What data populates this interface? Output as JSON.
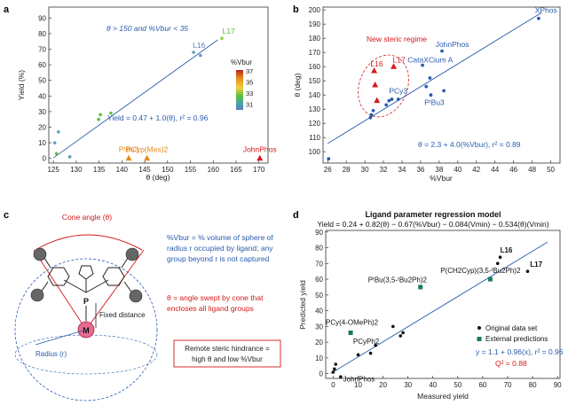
{
  "panels": {
    "a": {
      "label": "a",
      "chart_data": {
        "type": "scatter",
        "xlabel": "θ (deg)",
        "ylabel": "Yield (%)",
        "xlim": [
          124,
          172
        ],
        "ylim": [
          -3,
          97
        ],
        "xticks": [
          "125",
          "130",
          "135",
          "140",
          "145",
          "150",
          "155",
          "160",
          "165",
          "170"
        ],
        "yticks": [
          "0",
          "10",
          "20",
          "30",
          "40",
          "50",
          "60",
          "70",
          "80",
          "90"
        ],
        "points": [
          {
            "x": 125.3,
            "y": 10,
            "vbur": 31
          },
          {
            "x": 125.7,
            "y": 3,
            "vbur": 33
          },
          {
            "x": 126.1,
            "y": 17,
            "vbur": 31
          },
          {
            "x": 128.6,
            "y": 1,
            "vbur": 31
          },
          {
            "x": 134.9,
            "y": 25,
            "vbur": 33
          },
          {
            "x": 135.3,
            "y": 28,
            "vbur": 33
          },
          {
            "x": 137.6,
            "y": 29,
            "vbur": 33
          },
          {
            "x": 155.7,
            "y": 68,
            "vbur": 31
          },
          {
            "x": 157.2,
            "y": 66,
            "vbur": 31
          },
          {
            "x": 161.9,
            "y": 77,
            "vbur": 35
          }
        ],
        "triangles": [
          {
            "x": 141.5,
            "y": 0,
            "label": "PᵗBu3",
            "color": "#e8891a"
          },
          {
            "x": 145.5,
            "y": 0,
            "label": "PCyp(Mes)2",
            "color": "#e8891a"
          },
          {
            "x": 170.2,
            "y": 0,
            "label": "JohnPhos",
            "color": "#d7191c"
          }
        ],
        "point_labels": [
          {
            "text": "L16",
            "x": 155.5,
            "y": 71,
            "color": "#5a7ec0"
          },
          {
            "text": "L17",
            "x": 162,
            "y": 80,
            "color": "#5cbf3a"
          }
        ],
        "fit_line": {
          "x": [
            125,
            161
          ],
          "y": [
            0.3,
            76
          ]
        },
        "annot1": "θ > 150 and %Vbur < 35",
        "annot2": "Yield = 0.47 + 1.0(θ), r² = 0.96",
        "colorbar": {
          "title": "%Vbur",
          "ticks": [
            "37",
            "35",
            "33",
            "31"
          ],
          "colors": [
            "#b3261e",
            "#e8891a",
            "#f4d03f",
            "#5cbf3a",
            "#4aa6a0",
            "#5a7ec0"
          ]
        }
      }
    },
    "b": {
      "label": "b",
      "chart_data": {
        "type": "scatter",
        "xlabel": "%Vbur",
        "ylabel": "θ (deg)",
        "xlim": [
          25.5,
          51
        ],
        "ylim": [
          92,
          202
        ],
        "xticks": [
          "26",
          "28",
          "30",
          "32",
          "34",
          "36",
          "38",
          "40",
          "42",
          "44",
          "46",
          "48",
          "50"
        ],
        "yticks": [
          "100",
          "110",
          "120",
          "130",
          "140",
          "150",
          "160",
          "170",
          "180",
          "190",
          "200"
        ],
        "points": [
          {
            "x": 26.1,
            "y": 95
          },
          {
            "x": 30.6,
            "y": 124
          },
          {
            "x": 30.7,
            "y": 126
          },
          {
            "x": 30.9,
            "y": 129
          },
          {
            "x": 32.3,
            "y": 133
          },
          {
            "x": 32.6,
            "y": 136
          },
          {
            "x": 32.9,
            "y": 137
          },
          {
            "x": 33.6,
            "y": 137
          },
          {
            "x": 36.2,
            "y": 161
          },
          {
            "x": 36.6,
            "y": 146
          },
          {
            "x": 37.0,
            "y": 152
          },
          {
            "x": 37.1,
            "y": 140
          },
          {
            "x": 38.3,
            "y": 171
          },
          {
            "x": 38.5,
            "y": 143
          },
          {
            "x": 48.7,
            "y": 194
          }
        ],
        "triangles": [
          {
            "x": 31.0,
            "y": 157,
            "color": "#d7191c"
          },
          {
            "x": 31.1,
            "y": 147,
            "color": "#d7191c"
          },
          {
            "x": 31.3,
            "y": 136,
            "color": "#d7191c"
          },
          {
            "x": 33.1,
            "y": 160,
            "color": "#d7191c"
          }
        ],
        "point_labels": [
          {
            "text": "XPhos",
            "x": 48.3,
            "y": 198,
            "color": "#2a5cae"
          },
          {
            "text": "JohnPhos",
            "x": 37.6,
            "y": 174,
            "color": "#2a5cae"
          },
          {
            "text": "CataXCium A",
            "x": 34.6,
            "y": 163,
            "color": "#2a5cae"
          },
          {
            "text": "L17",
            "x": 33.0,
            "y": 163,
            "color": "#d7191c"
          },
          {
            "text": "L16",
            "x": 30.6,
            "y": 160,
            "color": "#d7191c"
          },
          {
            "text": "PCy3",
            "x": 32.6,
            "y": 141,
            "color": "#2a5cae"
          },
          {
            "text": "PᵗBu3",
            "x": 36.4,
            "y": 133,
            "color": "#2a5cae"
          }
        ],
        "fit_line": {
          "x": [
            26,
            49
          ],
          "y": [
            105.8,
            198
          ]
        },
        "regime_label": "New steric regime",
        "annot": "θ = 2.3 + 4.0(%Vbur), r² = 0.89"
      }
    },
    "c": {
      "label": "c",
      "cone_label": "Cone angle (θ)",
      "fixed_distance": "Fixed distance",
      "radius": "Radius (r)",
      "atom_p": "P",
      "atom_m": "M",
      "def1": [
        "%Vbur = % volume of sphere of",
        "radius r occupied by ligand; any",
        "group beyond r is not captured"
      ],
      "def2": [
        "θ = angle swept by cone that",
        "encloses all ligand groups"
      ],
      "box": [
        "Remote steric hindrance =",
        "high θ and low %Vbur"
      ]
    },
    "d": {
      "label": "d",
      "chart_data": {
        "type": "scatter",
        "title": "Ligand parameter regression model",
        "equation": "Yield = 0.24 + 0.82(θ) − 0.67(%Vbur) − 0.084(Vmin) − 0.534(θ)(Vmin)",
        "xlabel": "Measured yield",
        "ylabel": "Predicted yield",
        "xlim": [
          -3,
          91
        ],
        "ylim": [
          -3,
          91
        ],
        "xticks": [
          "0",
          "10",
          "20",
          "30",
          "40",
          "50",
          "60",
          "70",
          "80",
          "90"
        ],
        "yticks": [
          "0",
          "10",
          "20",
          "30",
          "40",
          "50",
          "60",
          "70",
          "80",
          "90"
        ],
        "series": [
          {
            "name": "Original data set",
            "color": "#111111",
            "points": [
              {
                "x": 0,
                "y": 1
              },
              {
                "x": 0.5,
                "y": 3
              },
              {
                "x": 1,
                "y": 6
              },
              {
                "x": 3,
                "y": -2
              },
              {
                "x": 10,
                "y": 12
              },
              {
                "x": 15,
                "y": 13
              },
              {
                "x": 17,
                "y": 18
              },
              {
                "x": 24,
                "y": 30
              },
              {
                "x": 27,
                "y": 24
              },
              {
                "x": 28,
                "y": 26
              },
              {
                "x": 66,
                "y": 70
              },
              {
                "x": 67,
                "y": 74
              },
              {
                "x": 78,
                "y": 65
              }
            ]
          },
          {
            "name": "External predictions",
            "color": "#1a7a5a",
            "points": [
              {
                "x": 7,
                "y": 26
              },
              {
                "x": 35,
                "y": 55
              },
              {
                "x": 63,
                "y": 60
              }
            ]
          }
        ],
        "point_labels": [
          {
            "text": "L16",
            "x": 67,
            "y": 77,
            "bold": true
          },
          {
            "text": "L17",
            "x": 79,
            "y": 68,
            "bold": true
          },
          {
            "text": "P(CH2Cyp)(3,5-ᵗBu2Ph)2",
            "x": 43,
            "y": 64
          },
          {
            "text": "PᵗBu(3,5-ᵗBu2Ph)2",
            "x": 14,
            "y": 58
          },
          {
            "text": "PCy(4-OMePh)2",
            "x": -3,
            "y": 31
          },
          {
            "text": "PCyPh2",
            "x": 8,
            "y": 19
          },
          {
            "text": "JohnPhos",
            "x": 4,
            "y": -5
          }
        ],
        "fit_line": {
          "x": [
            -1,
            86
          ],
          "y": [
            0.1,
            83.6
          ]
        },
        "annot1": "y = 1.1 + 0.96(x), r² = 0.96",
        "annot2": "Q² = 0.88"
      }
    }
  }
}
